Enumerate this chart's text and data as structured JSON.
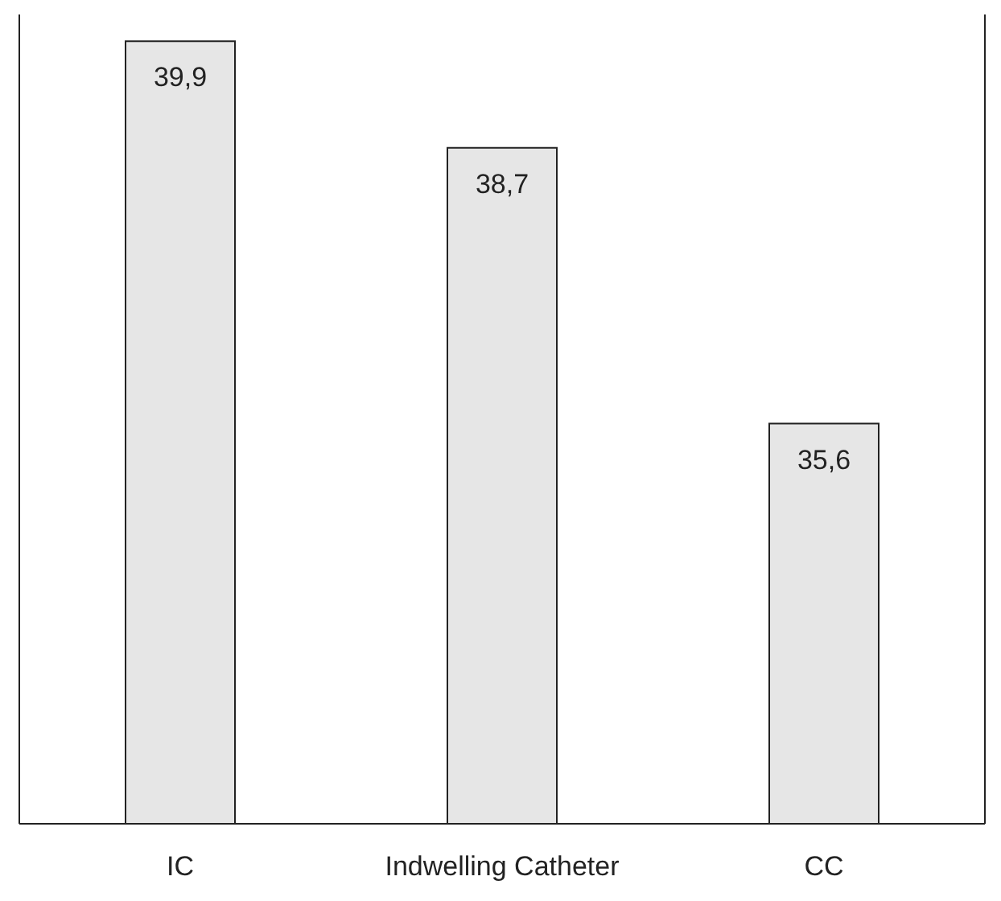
{
  "chart_data": {
    "type": "bar",
    "categories": [
      "IC",
      "Indwelling Catheter",
      "CC"
    ],
    "values": [
      39.9,
      38.7,
      35.6
    ],
    "value_labels": [
      "39,9",
      "38,7",
      "35,6"
    ],
    "color": "#e6e6e6",
    "ylim": [
      31.1,
      40.2
    ],
    "tick_labels": "x"
  }
}
